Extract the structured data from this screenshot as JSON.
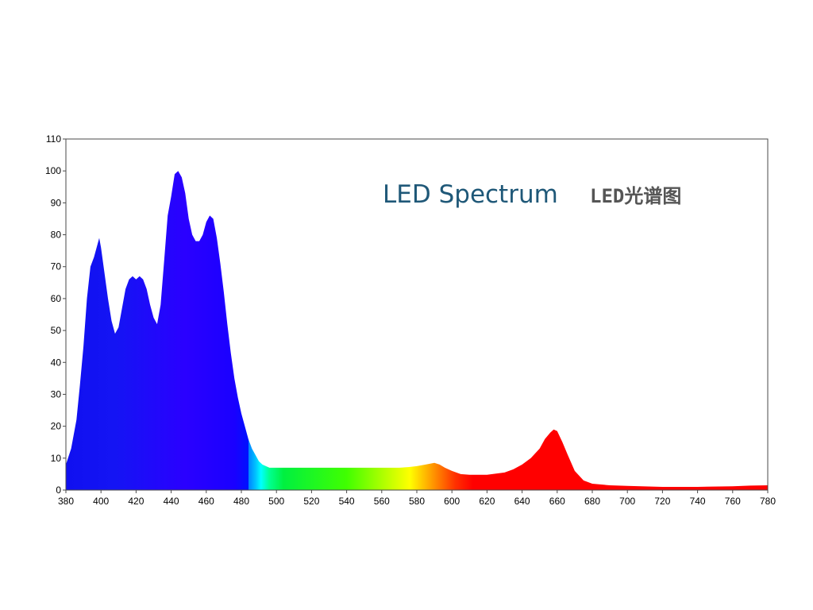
{
  "chart_data": {
    "type": "area",
    "title": "LED Spectrum",
    "subtitle": "LED光谱图",
    "xlabel": "",
    "ylabel": "",
    "xlim": [
      380,
      780
    ],
    "ylim": [
      0,
      110
    ],
    "xticks": [
      380,
      400,
      420,
      440,
      460,
      480,
      500,
      520,
      540,
      560,
      580,
      600,
      620,
      640,
      660,
      680,
      700,
      720,
      740,
      760,
      780
    ],
    "yticks": [
      0,
      10,
      20,
      30,
      40,
      50,
      60,
      70,
      80,
      90,
      100,
      110
    ],
    "grid": false,
    "fill": "visible-spectrum gradient",
    "series": [
      {
        "x": [
          380,
          383,
          386,
          388,
          390,
          392,
          394,
          396,
          398,
          399,
          400,
          402,
          404,
          406,
          408,
          410,
          412,
          414,
          416,
          418,
          420,
          422,
          424,
          426,
          428,
          430,
          432,
          434,
          436,
          438,
          440,
          442,
          444,
          446,
          448,
          450,
          452,
          454,
          456,
          458,
          460,
          462,
          464,
          466,
          468,
          470,
          472,
          474,
          476,
          478,
          480,
          482,
          484,
          486,
          488,
          490,
          492,
          494,
          496,
          500,
          505,
          510,
          520,
          530,
          540,
          550,
          560,
          570,
          575,
          580,
          585,
          590,
          593,
          596,
          600,
          605,
          610,
          620,
          630,
          635,
          640,
          645,
          650,
          653,
          656,
          658,
          660,
          663,
          666,
          670,
          675,
          680,
          690,
          700,
          720,
          740,
          760,
          770,
          780
        ],
        "y": [
          8,
          13,
          22,
          33,
          45,
          60,
          70,
          73,
          77,
          79,
          76,
          68,
          60,
          53,
          49,
          51,
          57,
          63,
          66,
          67,
          66,
          67,
          66,
          63,
          58,
          54,
          52,
          58,
          72,
          86,
          92,
          99,
          100,
          98,
          93,
          85,
          80,
          78,
          78,
          80,
          84,
          86,
          85,
          79,
          71,
          62,
          52,
          43,
          35,
          29,
          24,
          20,
          16,
          13,
          11,
          9,
          8,
          7.5,
          7,
          7,
          7,
          7,
          7,
          7,
          7,
          7,
          7,
          7,
          7.2,
          7.5,
          8,
          8.5,
          8,
          7,
          6,
          5,
          4.8,
          4.8,
          5.5,
          6.5,
          8,
          10,
          13,
          16,
          18,
          19,
          18.5,
          15,
          11,
          6,
          3,
          2,
          1.5,
          1.3,
          1,
          1,
          1.2,
          1.4,
          1.5
        ]
      }
    ]
  }
}
